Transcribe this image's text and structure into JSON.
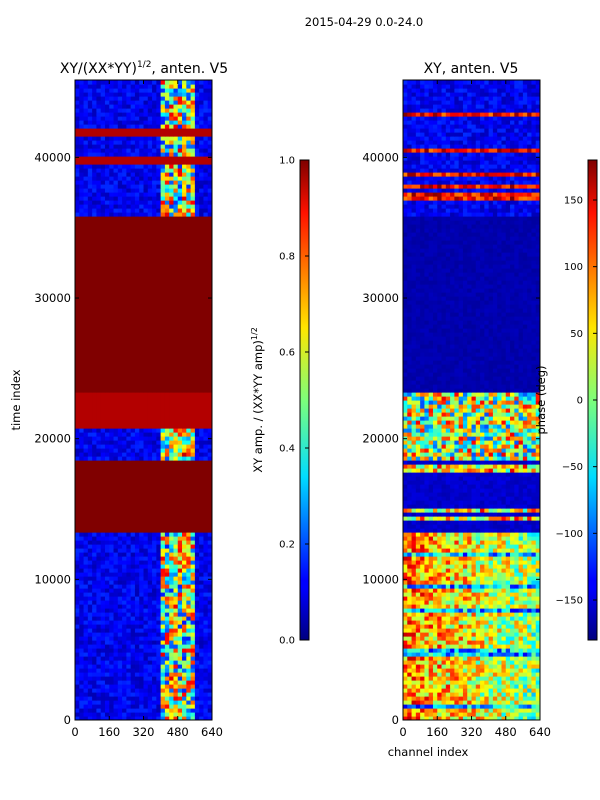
{
  "figure_title": "2015-04-29 0.0-24.0",
  "chart_data": [
    {
      "type": "heatmap",
      "title": "XY/(XX*YY)",
      "title_exponent": "1/2",
      "title_suffix": ", anten. V5",
      "xlabel": "",
      "ylabel": "time index",
      "xlim": [
        0,
        640
      ],
      "ylim": [
        0,
        45500
      ],
      "xticks": [
        0,
        160,
        320,
        480,
        640
      ],
      "yticks": [
        0,
        10000,
        20000,
        30000,
        40000
      ],
      "colorbar": {
        "label": "XY amp. / (XX*YY amp)",
        "label_exponent": "1/2",
        "range": [
          0.0,
          1.0
        ],
        "ticks": [
          "0.0",
          "0.2",
          "0.4",
          "0.6",
          "0.8",
          "1.0"
        ],
        "colormap": "jet"
      },
      "bands": [
        {
          "y0": 0,
          "y1": 13300,
          "pattern": "low-amp-with-bright-channels-400-560",
          "base_value": 0.1
        },
        {
          "y0": 13300,
          "y1": 18500,
          "pattern": "saturated",
          "base_value": 1.0
        },
        {
          "y0": 18500,
          "y1": 20800,
          "pattern": "mixed-bright-block-430-520",
          "base_value": 0.15
        },
        {
          "y0": 20800,
          "y1": 23300,
          "pattern": "saturated-with-blue-lines",
          "base_value": 0.95
        },
        {
          "y0": 23300,
          "y1": 35700,
          "pattern": "saturated",
          "base_value": 1.0
        },
        {
          "y0": 35700,
          "y1": 45500,
          "pattern": "low-amp-with-red-lines",
          "base_value": 0.1
        }
      ]
    },
    {
      "type": "heatmap",
      "title": "XY, anten. V5",
      "xlabel": "channel index",
      "ylabel": "",
      "xlim": [
        0,
        640
      ],
      "ylim": [
        0,
        45500
      ],
      "xticks": [
        0,
        160,
        320,
        480,
        640
      ],
      "yticks": [
        0,
        10000,
        20000,
        30000,
        40000
      ],
      "colorbar": {
        "label": "phase (deg)",
        "range": [
          -180,
          180
        ],
        "ticks": [
          "−150",
          "−100",
          "−50",
          "0",
          "50",
          "100",
          "150"
        ],
        "colormap": "jet"
      },
      "bands": [
        {
          "y0": 0,
          "y1": 13300,
          "pattern": "wide-phase-variation",
          "base_value": 0.75
        },
        {
          "y0": 13300,
          "y1": 18500,
          "pattern": "mostly-low-phase",
          "base_value": -170
        },
        {
          "y0": 18500,
          "y1": 23300,
          "pattern": "mixed-phase",
          "base_value": 0
        },
        {
          "y0": 23300,
          "y1": 35700,
          "pattern": "uniform-low-phase",
          "base_value": -175
        },
        {
          "y0": 35700,
          "y1": 45500,
          "pattern": "mixed-red-blue-lines",
          "base_value": -170
        }
      ]
    }
  ]
}
